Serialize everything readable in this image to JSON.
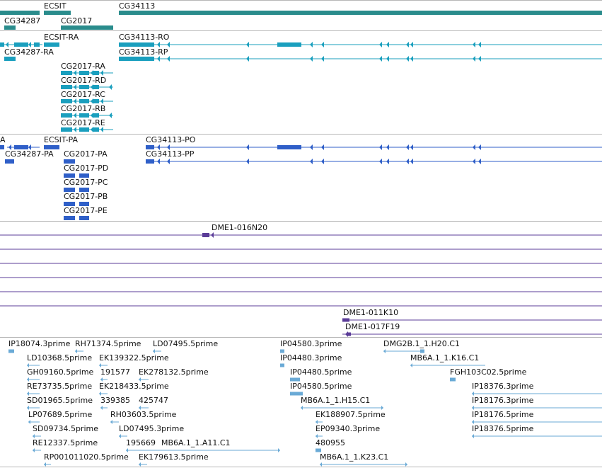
{
  "colors": {
    "gene": "#2a8c8c",
    "transcript_top": "#1a9fbe",
    "protein": "#2f5fc8",
    "clone": "#5b3c98",
    "est": "#6aaad6",
    "separator": "#b7b7b7"
  },
  "gene_track": {
    "labels": [
      "ECSIT",
      "CG34113",
      "CG34287",
      "CG2017"
    ]
  },
  "transcript_track": {
    "labels": [
      "ECSIT-RA",
      "CG34113-RO",
      "CG34287-RA",
      "CG34113-RP",
      "CG2017-RA",
      "CG2017-RD",
      "CG2017-RC",
      "CG2017-RB",
      "CG2017-RE"
    ]
  },
  "protein_track": {
    "labels": [
      "A",
      "ECSIT-PA",
      "CG34113-PO",
      "CG34287-PA",
      "CG2017-PA",
      "CG34113-PP",
      "CG2017-PD",
      "CG2017-PC",
      "CG2017-PB",
      "CG2017-PE"
    ]
  },
  "clone_track": {
    "labels": [
      "DME1-016N20",
      "DME1-011K10",
      "DME1-017F19"
    ]
  },
  "est_track": {
    "labels": [
      "IP18074.3prime",
      "RH71374.5prime",
      "LD07495.5prime",
      "IP04580.3prime",
      "DMG2B.1_1.H20.C1",
      "LD10368.5prime",
      "EK139322.5prime",
      "IP04480.3prime",
      "MB6A.1_1.K16.C1",
      "GH09160.5prime",
      "191577",
      "EK278132.5prime",
      "IP04480.5prime",
      "FGH103C02.5prime",
      "RE73735.5prime",
      "EK218433.5prime",
      "IP04580.5prime",
      "IP18376.3prime",
      "SD01965.5prime",
      "339385",
      "425747",
      "MB6A.1_1.H15.C1",
      "IP18176.3prime",
      "LP07689.5prime",
      "RH03603.5prime",
      "EK188907.5prime",
      "IP18176.5prime",
      "SD09734.5prime",
      "LD07495.3prime",
      "EP09340.3prime",
      "IP18376.5prime",
      "RE12337.5prime",
      "195669",
      "MB6A.1_1.A11.C1",
      "480955",
      "RP001011020.5prime",
      "EK179613.5prime",
      "MB6A.1_1.K23.C1"
    ]
  }
}
